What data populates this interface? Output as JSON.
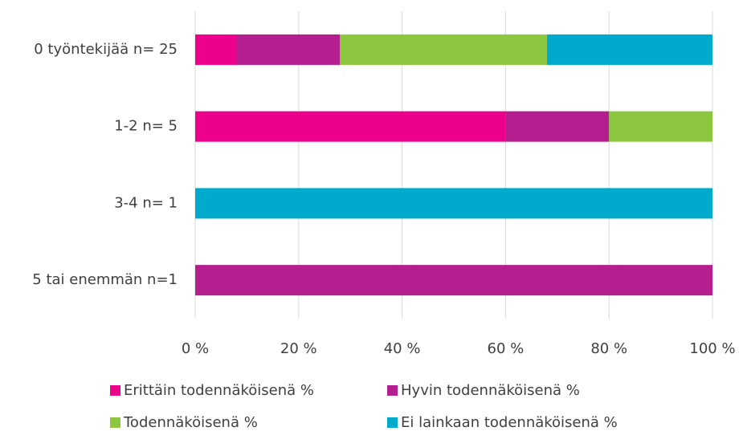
{
  "chart_data": {
    "type": "bar",
    "orientation": "horizontal",
    "stacked": true,
    "categories": [
      "0 työntekijää n= 25",
      "1-2 n= 5",
      "3-4 n= 1",
      "5 tai enemmän n=1"
    ],
    "series": [
      {
        "name": "Erittäin todennäköisenä %",
        "color": "#ec008c",
        "values": [
          8,
          60,
          0,
          0
        ]
      },
      {
        "name": "Hyvin todennäköisenä %",
        "color": "#b41e8e",
        "values": [
          20,
          20,
          0,
          100
        ]
      },
      {
        "name": "Todennäköisenä %",
        "color": "#8dc63f",
        "values": [
          40,
          20,
          0,
          0
        ]
      },
      {
        "name": "Ei lainkaan todennäköisenä %",
        "color": "#00aacc",
        "values": [
          32,
          0,
          100,
          0
        ]
      }
    ],
    "xlim": [
      0,
      100
    ],
    "xticks": [
      {
        "value": 0,
        "label": "0 %"
      },
      {
        "value": 20,
        "label": "20 %"
      },
      {
        "value": 40,
        "label": "40 %"
      },
      {
        "value": 60,
        "label": "60 %"
      },
      {
        "value": 80,
        "label": "80 %"
      },
      {
        "value": 100,
        "label": "100 %"
      }
    ],
    "grid": true,
    "legend": "bottom"
  }
}
